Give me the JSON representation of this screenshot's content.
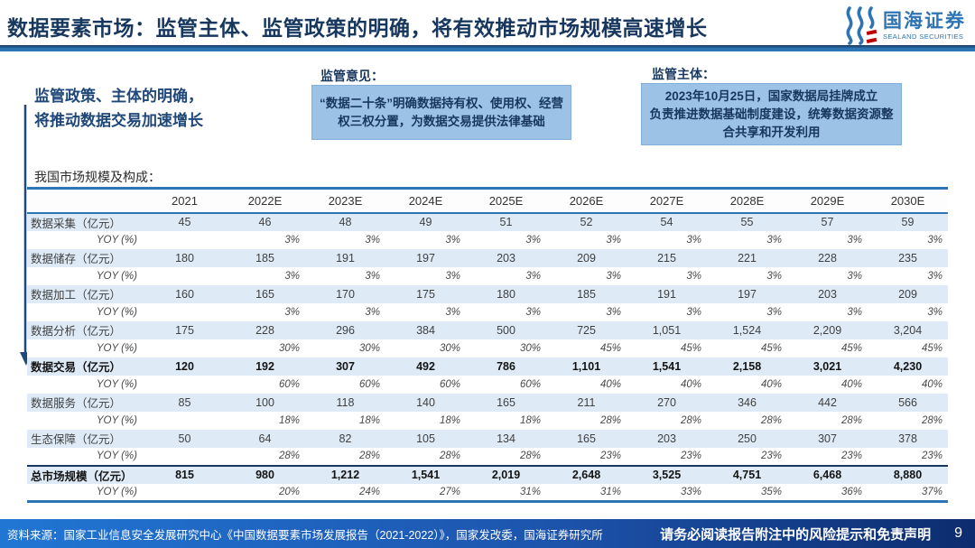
{
  "header": {
    "title": "数据要素市场：监管主体、监管政策的明确，将有效推动市场规模高速增长",
    "logo_cn": "国海证券",
    "logo_en": "SEALAND SECURITIES"
  },
  "callouts": {
    "note_line1": "监管政策、主体的明确，",
    "note_line2": "将推动数据交易加速增长",
    "opinion_label": "监管意见：",
    "opinion_text": "“数据二十条”明确数据持有权、使用权、经营权三权分置，为数据交易提供法律基础",
    "subject_label": "监管主体：",
    "subject_line1": "2023年10月25日，国家数据局挂牌成立",
    "subject_line2": "负责推进数据基础制度建设，统筹数据资源整合共享和开发利用"
  },
  "table": {
    "caption": "我国市场规模及构成：",
    "columns": [
      "2021",
      "2022E",
      "2023E",
      "2024E",
      "2025E",
      "2026E",
      "2027E",
      "2028E",
      "2029E",
      "2030E"
    ],
    "rows": [
      {
        "label": "数据采集（亿元）",
        "type": "value",
        "bold": false,
        "heavy_top": false,
        "values": [
          "45",
          "46",
          "48",
          "49",
          "51",
          "52",
          "54",
          "55",
          "57",
          "59"
        ]
      },
      {
        "label": "YOY (%)",
        "type": "yoy",
        "bold": false,
        "heavy_top": false,
        "values": [
          "",
          "3%",
          "3%",
          "3%",
          "3%",
          "3%",
          "3%",
          "3%",
          "3%",
          "3%"
        ]
      },
      {
        "label": "数据储存（亿元）",
        "type": "value",
        "bold": false,
        "heavy_top": false,
        "values": [
          "180",
          "185",
          "191",
          "197",
          "203",
          "209",
          "215",
          "221",
          "228",
          "235"
        ]
      },
      {
        "label": "YOY (%)",
        "type": "yoy",
        "bold": false,
        "heavy_top": false,
        "values": [
          "",
          "3%",
          "3%",
          "3%",
          "3%",
          "3%",
          "3%",
          "3%",
          "3%",
          "3%"
        ]
      },
      {
        "label": "数据加工（亿元）",
        "type": "value",
        "bold": false,
        "heavy_top": false,
        "values": [
          "160",
          "165",
          "170",
          "175",
          "180",
          "185",
          "191",
          "197",
          "203",
          "209"
        ]
      },
      {
        "label": "YOY (%)",
        "type": "yoy",
        "bold": false,
        "heavy_top": false,
        "values": [
          "",
          "3%",
          "3%",
          "3%",
          "3%",
          "3%",
          "3%",
          "3%",
          "3%",
          "3%"
        ]
      },
      {
        "label": "数据分析（亿元）",
        "type": "value",
        "bold": false,
        "heavy_top": false,
        "values": [
          "175",
          "228",
          "296",
          "384",
          "500",
          "725",
          "1,051",
          "1,524",
          "2,209",
          "3,204"
        ]
      },
      {
        "label": "YOY (%)",
        "type": "yoy",
        "bold": false,
        "heavy_top": false,
        "values": [
          "",
          "30%",
          "30%",
          "30%",
          "30%",
          "45%",
          "45%",
          "45%",
          "45%",
          "45%"
        ]
      },
      {
        "label": "数据交易（亿元）",
        "type": "value",
        "bold": true,
        "heavy_top": false,
        "values": [
          "120",
          "192",
          "307",
          "492",
          "786",
          "1,101",
          "1,541",
          "2,158",
          "3,021",
          "4,230"
        ]
      },
      {
        "label": "YOY (%)",
        "type": "yoy",
        "bold": false,
        "heavy_top": false,
        "values": [
          "",
          "60%",
          "60%",
          "60%",
          "60%",
          "40%",
          "40%",
          "40%",
          "40%",
          "40%"
        ]
      },
      {
        "label": "数据服务（亿元）",
        "type": "value",
        "bold": false,
        "heavy_top": false,
        "values": [
          "85",
          "100",
          "118",
          "140",
          "165",
          "211",
          "270",
          "346",
          "442",
          "566"
        ]
      },
      {
        "label": "YOY (%)",
        "type": "yoy",
        "bold": false,
        "heavy_top": false,
        "values": [
          "",
          "18%",
          "18%",
          "18%",
          "18%",
          "28%",
          "28%",
          "28%",
          "28%",
          "28%"
        ]
      },
      {
        "label": "生态保障（亿元）",
        "type": "value",
        "bold": false,
        "heavy_top": false,
        "values": [
          "50",
          "64",
          "82",
          "105",
          "134",
          "165",
          "203",
          "250",
          "307",
          "378"
        ]
      },
      {
        "label": "YOY (%)",
        "type": "yoy",
        "bold": false,
        "heavy_top": false,
        "values": [
          "",
          "28%",
          "28%",
          "28%",
          "28%",
          "23%",
          "23%",
          "23%",
          "23%",
          "23%"
        ]
      },
      {
        "label": "总市场规模（亿元）",
        "type": "value",
        "bold": true,
        "heavy_top": true,
        "values": [
          "815",
          "980",
          "1,212",
          "1,541",
          "2,019",
          "2,648",
          "3,525",
          "4,751",
          "6,468",
          "8,880"
        ]
      },
      {
        "label": "YOY (%)",
        "type": "yoy",
        "bold": false,
        "heavy_top": false,
        "values": [
          "",
          "20%",
          "24%",
          "27%",
          "31%",
          "31%",
          "33%",
          "35%",
          "36%",
          "37%"
        ]
      }
    ]
  },
  "footer": {
    "source": "资料来源：国家工业信息安全发展研究中心《中国数据要素市场发展报告（2021-2022）》，国家发改委，国海证券研究所",
    "disclaimer": "请务必阅读报告附注中的风险提示和免责声明",
    "page": "9"
  },
  "colors": {
    "title_navy": "#17375E",
    "brand_blue": "#2E74B5",
    "table_border_blue": "#2E75B6",
    "row_highlight": "#DEEAF6",
    "callout_fill": "#9CC2E5",
    "footer_gradient_start": "#2176D4",
    "footer_gradient_end": "#0D2C6E",
    "logo_red": "#C00000"
  }
}
